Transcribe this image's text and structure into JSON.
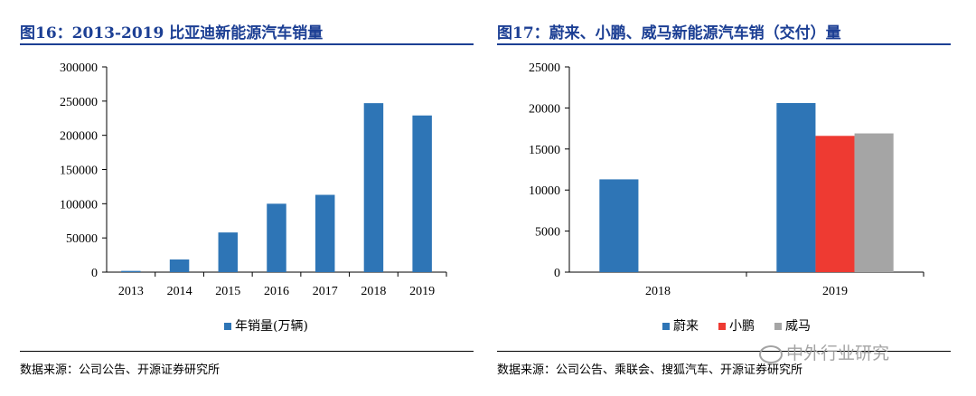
{
  "left": {
    "title": "图16：2013-2019 比亚迪新能源汽车销量",
    "source": "数据来源：公司公告、开源证券研究所"
  },
  "right": {
    "title": "图17：蔚来、小鹏、威马新能源汽车销（交付）量",
    "source": "数据来源：公司公告、乘联会、搜狐汽车、开源证券研究所"
  },
  "watermark": "中外行业研究",
  "chart_data": [
    {
      "type": "bar",
      "title": "图16：2013-2019 比亚迪新能源汽车销量",
      "categories": [
        "2013",
        "2014",
        "2015",
        "2016",
        "2017",
        "2018",
        "2019"
      ],
      "series": [
        {
          "name": "年销量(万辆)",
          "color": "#2e75b6",
          "values": [
            1800,
            18500,
            58000,
            100000,
            113000,
            247000,
            229000
          ]
        }
      ],
      "ylim": [
        0,
        300000
      ],
      "yticks": [
        "0",
        "50000",
        "100000",
        "150000",
        "200000",
        "250000",
        "300000"
      ],
      "legend": "bottom",
      "grid": false
    },
    {
      "type": "bar",
      "title": "图17：蔚来、小鹏、威马新能源汽车销（交付）量",
      "categories": [
        "2018",
        "2019"
      ],
      "series": [
        {
          "name": "蔚来",
          "color": "#2e75b6",
          "values": [
            11300,
            20600
          ]
        },
        {
          "name": "小鹏",
          "color": "#ee3a32",
          "values": [
            0,
            16600
          ]
        },
        {
          "name": "威马",
          "color": "#a5a5a5",
          "values": [
            0,
            16900
          ]
        }
      ],
      "ylim": [
        0,
        25000
      ],
      "yticks": [
        "0",
        "5000",
        "10000",
        "15000",
        "20000",
        "25000"
      ],
      "legend": "bottom",
      "grid": false
    }
  ]
}
